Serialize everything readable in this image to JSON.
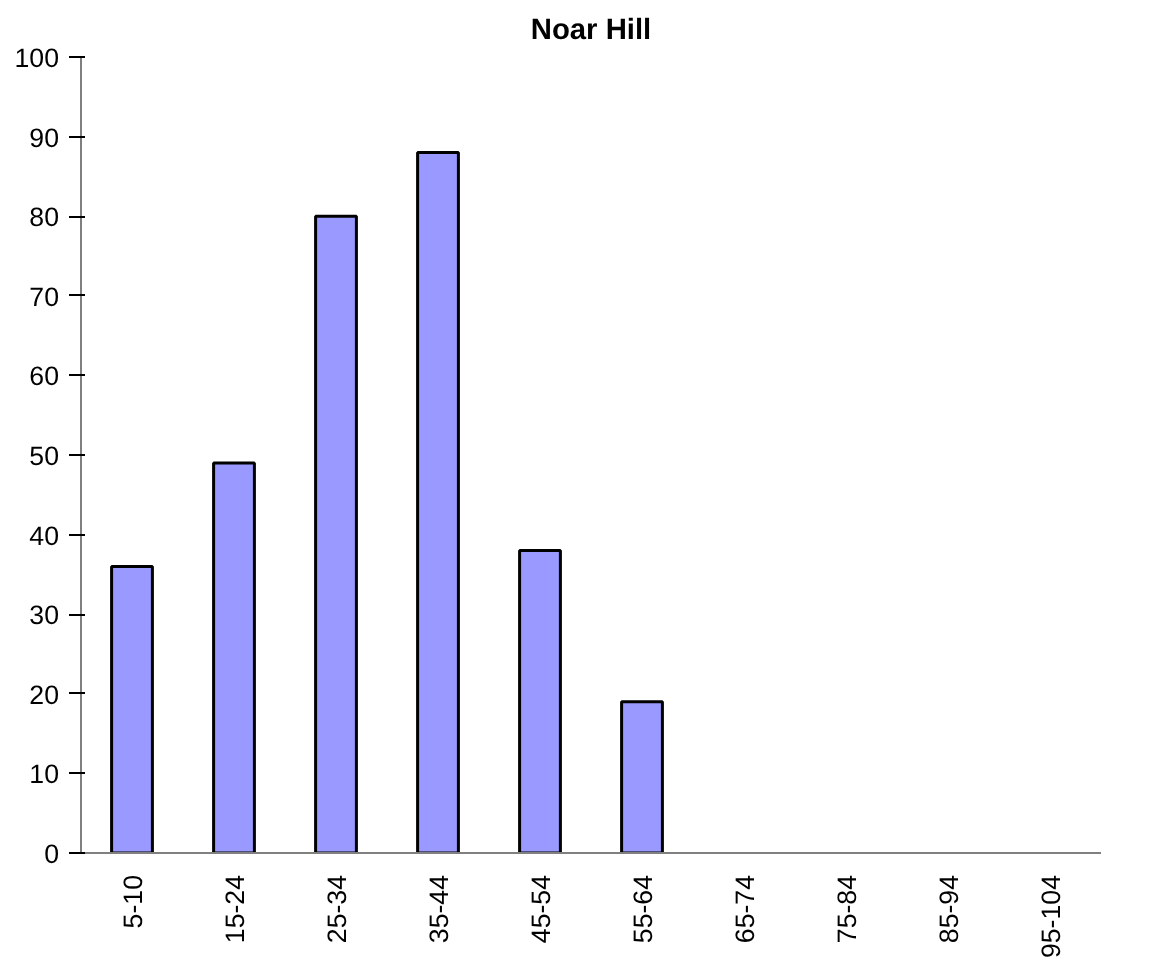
{
  "chart_data": {
    "type": "bar",
    "title": "Noar Hill",
    "categories": [
      "5-10",
      "15-24",
      "25-34",
      "35-44",
      "45-54",
      "55-64",
      "65-74",
      "75-84",
      "85-94",
      "95-104"
    ],
    "values": [
      36,
      49,
      80,
      88,
      38,
      19,
      null,
      null,
      null,
      null
    ],
    "color": "#9999ff",
    "ylim": [
      0,
      100
    ],
    "yticks": [
      0,
      10,
      20,
      30,
      40,
      50,
      60,
      70,
      80,
      90,
      100
    ],
    "grid": false
  }
}
